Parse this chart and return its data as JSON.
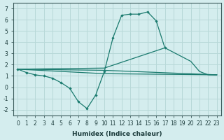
{
  "xlabel": "Humidex (Indice chaleur)",
  "background_color": "#d4edee",
  "grid_color": "#b8d8d8",
  "line_color": "#1a7a6e",
  "x_ticks": [
    0,
    1,
    2,
    3,
    4,
    5,
    6,
    7,
    8,
    9,
    10,
    11,
    12,
    13,
    14,
    15,
    16,
    17,
    18,
    19,
    20,
    21,
    22,
    23
  ],
  "y_ticks": [
    -2,
    -1,
    0,
    1,
    2,
    3,
    4,
    5,
    6,
    7
  ],
  "ylim": [
    -2.5,
    7.5
  ],
  "xlim": [
    -0.5,
    23.5
  ],
  "series": [
    {
      "x": [
        0,
        1,
        2,
        3,
        4,
        5,
        6,
        7,
        8,
        9,
        10,
        11,
        12,
        13,
        14,
        15,
        16,
        17
      ],
      "y": [
        1.6,
        1.3,
        1.1,
        1.0,
        0.8,
        0.4,
        -0.1,
        -1.3,
        -1.9,
        -0.7,
        1.4,
        4.4,
        6.4,
        6.5,
        6.5,
        6.7,
        5.9,
        3.5
      ],
      "has_marker": true
    },
    {
      "x": [
        0,
        10,
        17,
        20,
        21,
        22,
        23
      ],
      "y": [
        1.6,
        1.7,
        3.5,
        2.3,
        1.4,
        1.1,
        1.1
      ],
      "has_marker": false
    },
    {
      "x": [
        0,
        10,
        23
      ],
      "y": [
        1.6,
        1.5,
        1.1
      ],
      "has_marker": false
    },
    {
      "x": [
        0,
        10,
        23
      ],
      "y": [
        1.6,
        1.2,
        1.1
      ],
      "has_marker": false
    }
  ]
}
